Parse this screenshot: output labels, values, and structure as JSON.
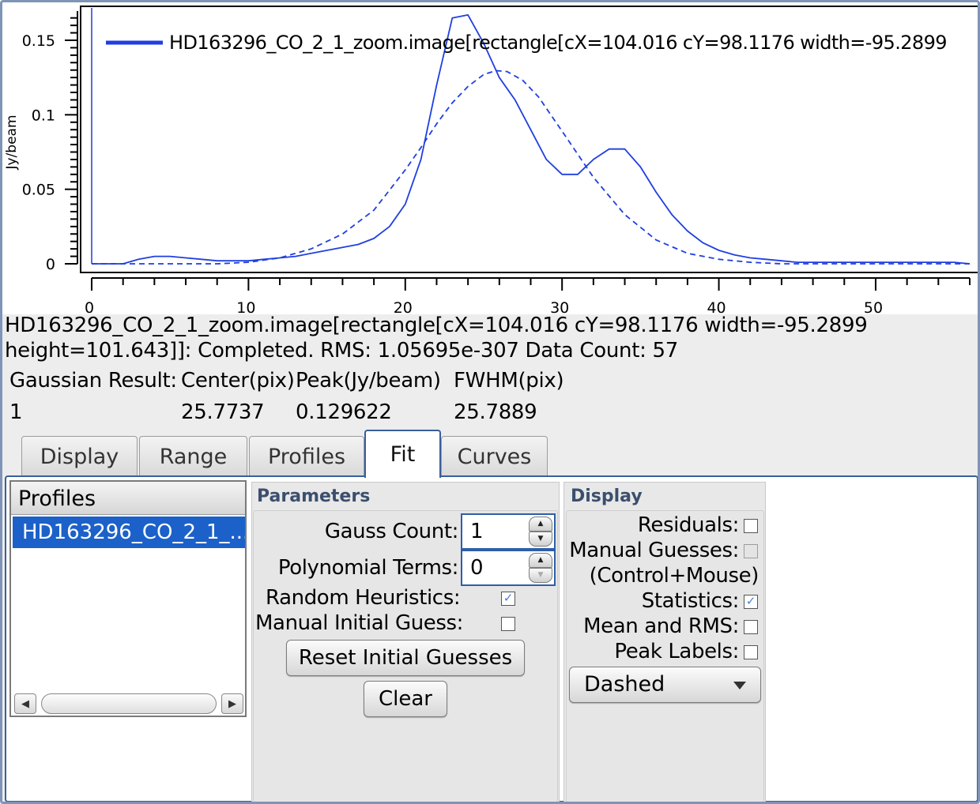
{
  "chart_data": {
    "type": "line",
    "ylabel": "Jy/beam",
    "xlim": [
      0,
      56
    ],
    "ylim": [
      0,
      0.17
    ],
    "x_ticks": [
      0,
      10,
      20,
      30,
      40,
      50
    ],
    "y_ticks": [
      0,
      0.05,
      0.1,
      0.15
    ],
    "y_tick_labels": [
      "0",
      "0.05",
      "0.1",
      "0.15"
    ],
    "legend_placement": "top-left",
    "series": [
      {
        "name": "HD163296_CO_2_1_zoom.image[rectangle[cX=104.016 cY=98.1176 width=-95.2899",
        "style": "solid",
        "color": "#1f3fe0",
        "x": [
          0,
          1,
          2,
          3,
          4,
          5,
          6,
          7,
          8,
          9,
          10,
          11,
          12,
          13,
          14,
          15,
          16,
          17,
          18,
          19,
          20,
          21,
          22,
          23,
          24,
          25,
          26,
          27,
          28,
          29,
          30,
          31,
          32,
          33,
          34,
          35,
          36,
          37,
          38,
          39,
          40,
          41,
          42,
          43,
          44,
          45,
          46,
          47,
          48,
          49,
          50,
          51,
          52,
          53,
          54,
          55,
          56
        ],
        "values": [
          0,
          0,
          0,
          0.003,
          0.005,
          0.005,
          0.004,
          0.003,
          0.002,
          0.002,
          0.002,
          0.003,
          0.004,
          0.005,
          0.007,
          0.009,
          0.011,
          0.013,
          0.017,
          0.025,
          0.04,
          0.07,
          0.12,
          0.165,
          0.167,
          0.148,
          0.125,
          0.11,
          0.09,
          0.07,
          0.06,
          0.06,
          0.07,
          0.077,
          0.077,
          0.065,
          0.048,
          0.033,
          0.022,
          0.014,
          0.009,
          0.006,
          0.004,
          0.003,
          0.002,
          0.001,
          0.001,
          0.001,
          0.001,
          0.001,
          0.001,
          0.001,
          0.001,
          0.001,
          0.001,
          0.001,
          0
        ]
      },
      {
        "name": "",
        "style": "dashed",
        "color": "#1f3fe0",
        "x": [
          0,
          2,
          4,
          6,
          8,
          10,
          12,
          14,
          16,
          18,
          20,
          21,
          22,
          23,
          24,
          25,
          25.77,
          26.5,
          27.5,
          28.5,
          30,
          32,
          34,
          36,
          38,
          40,
          42,
          44,
          46,
          48,
          50,
          52,
          54,
          56
        ],
        "values": [
          0,
          0,
          0,
          0,
          0,
          0.001,
          0.004,
          0.01,
          0.02,
          0.036,
          0.063,
          0.078,
          0.094,
          0.108,
          0.119,
          0.127,
          0.129622,
          0.129,
          0.123,
          0.112,
          0.089,
          0.058,
          0.033,
          0.016,
          0.007,
          0.003,
          0.001,
          0,
          0,
          0,
          0,
          0,
          0,
          0
        ]
      }
    ]
  },
  "status": {
    "line1": "HD163296_CO_2_1_zoom.image[rectangle[cX=104.016 cY=98.1176 width=-95.2899",
    "line2": "height=101.643]]: Completed. RMS: 1.05695e-307 Data Count: 57"
  },
  "results": {
    "headers": [
      "Gaussian Result:",
      "Center(pix)",
      "Peak(Jy/beam)",
      "FWHM(pix)"
    ],
    "row": [
      "1",
      "25.7737",
      "0.129622",
      "25.7889"
    ]
  },
  "tabs": [
    "Display",
    "Range",
    "Profiles",
    "Fit",
    "Curves"
  ],
  "active_tab": "Fit",
  "profiles": {
    "header": "Profiles",
    "items": [
      "HD163296_CO_2_1_..."
    ]
  },
  "parameters": {
    "title": "Parameters",
    "gauss_count_label": "Gauss Count:",
    "gauss_count_value": "1",
    "poly_terms_label": "Polynomial Terms:",
    "poly_terms_value": "0",
    "random_heuristics_label": "Random Heuristics:",
    "random_heuristics_checked": true,
    "manual_initial_guess_label": "Manual Initial Guess:",
    "manual_initial_guess_checked": false,
    "reset_button": "Reset Initial Guesses",
    "clear_button": "Clear"
  },
  "display": {
    "title": "Display",
    "residuals_label": "Residuals:",
    "manual_guesses_label": "Manual Guesses:",
    "control_mouse_label": "(Control+Mouse)",
    "statistics_label": "Statistics:",
    "mean_rms_label": "Mean and RMS:",
    "peak_labels_label": "Peak Labels:",
    "line_style": "Dashed"
  },
  "colors": {
    "accent": "#1c61c9",
    "curve": "#1f3fe0",
    "group_title": "#3b4f6d"
  }
}
